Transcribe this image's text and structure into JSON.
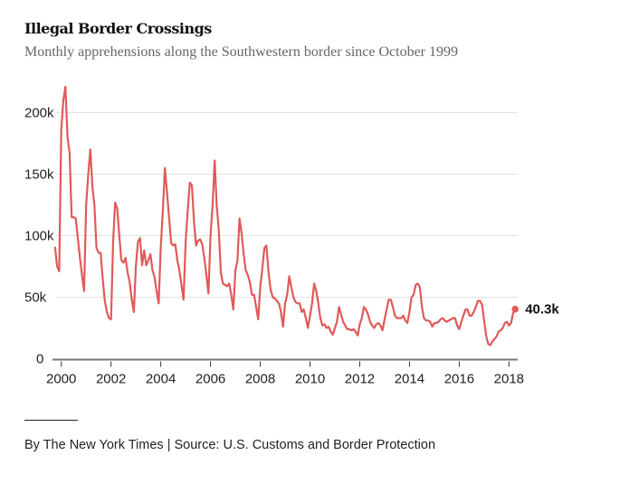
{
  "header": {
    "title": "Illegal Border Crossings",
    "subtitle": "Monthly apprehensions along the Southwestern border since October 1999"
  },
  "footer": {
    "credit": "By The New York Times | Source: U.S. Customs and Border Protection"
  },
  "chart_data": {
    "type": "line",
    "title": "Illegal Border Crossings",
    "subtitle": "Monthly apprehensions along the Southwestern border since October 1999",
    "xlabel": "",
    "ylabel": "",
    "ylim": [
      0,
      220000
    ],
    "y_ticks": [
      {
        "value": 0,
        "label": "0"
      },
      {
        "value": 50000,
        "label": "50k"
      },
      {
        "value": 100000,
        "label": "100k"
      },
      {
        "value": 150000,
        "label": "150k"
      },
      {
        "value": 200000,
        "label": "200k"
      }
    ],
    "x_ticks": [
      "2000",
      "2002",
      "2004",
      "2006",
      "2008",
      "2010",
      "2012",
      "2014",
      "2016",
      "2018"
    ],
    "grid": true,
    "line_color": "#e05a5a",
    "end_label": "40.3k",
    "x": [
      "1999-10",
      "1999-11",
      "1999-12",
      "2000-01",
      "2000-02",
      "2000-03",
      "2000-04",
      "2000-05",
      "2000-06",
      "2000-07",
      "2000-08",
      "2000-09",
      "2000-10",
      "2000-11",
      "2000-12",
      "2001-01",
      "2001-02",
      "2001-03",
      "2001-04",
      "2001-05",
      "2001-06",
      "2001-07",
      "2001-08",
      "2001-09",
      "2001-10",
      "2001-11",
      "2001-12",
      "2002-01",
      "2002-02",
      "2002-03",
      "2002-04",
      "2002-05",
      "2002-06",
      "2002-07",
      "2002-08",
      "2002-09",
      "2002-10",
      "2002-11",
      "2002-12",
      "2003-01",
      "2003-02",
      "2003-03",
      "2003-04",
      "2003-05",
      "2003-06",
      "2003-07",
      "2003-08",
      "2003-09",
      "2003-10",
      "2003-11",
      "2003-12",
      "2004-01",
      "2004-02",
      "2004-03",
      "2004-04",
      "2004-05",
      "2004-06",
      "2004-07",
      "2004-08",
      "2004-09",
      "2004-10",
      "2004-11",
      "2004-12",
      "2005-01",
      "2005-02",
      "2005-03",
      "2005-04",
      "2005-05",
      "2005-06",
      "2005-07",
      "2005-08",
      "2005-09",
      "2005-10",
      "2005-11",
      "2005-12",
      "2006-01",
      "2006-02",
      "2006-03",
      "2006-04",
      "2006-05",
      "2006-06",
      "2006-07",
      "2006-08",
      "2006-09",
      "2006-10",
      "2006-11",
      "2006-12",
      "2007-01",
      "2007-02",
      "2007-03",
      "2007-04",
      "2007-05",
      "2007-06",
      "2007-07",
      "2007-08",
      "2007-09",
      "2007-10",
      "2007-11",
      "2007-12",
      "2008-01",
      "2008-02",
      "2008-03",
      "2008-04",
      "2008-05",
      "2008-06",
      "2008-07",
      "2008-08",
      "2008-09",
      "2008-10",
      "2008-11",
      "2008-12",
      "2009-01",
      "2009-02",
      "2009-03",
      "2009-04",
      "2009-05",
      "2009-06",
      "2009-07",
      "2009-08",
      "2009-09",
      "2009-10",
      "2009-11",
      "2009-12",
      "2010-01",
      "2010-02",
      "2010-03",
      "2010-04",
      "2010-05",
      "2010-06",
      "2010-07",
      "2010-08",
      "2010-09",
      "2010-10",
      "2010-11",
      "2010-12",
      "2011-01",
      "2011-02",
      "2011-03",
      "2011-04",
      "2011-05",
      "2011-06",
      "2011-07",
      "2011-08",
      "2011-09",
      "2011-10",
      "2011-11",
      "2011-12",
      "2012-01",
      "2012-02",
      "2012-03",
      "2012-04",
      "2012-05",
      "2012-06",
      "2012-07",
      "2012-08",
      "2012-09",
      "2012-10",
      "2012-11",
      "2012-12",
      "2013-01",
      "2013-02",
      "2013-03",
      "2013-04",
      "2013-05",
      "2013-06",
      "2013-07",
      "2013-08",
      "2013-09",
      "2013-10",
      "2013-11",
      "2013-12",
      "2014-01",
      "2014-02",
      "2014-03",
      "2014-04",
      "2014-05",
      "2014-06",
      "2014-07",
      "2014-08",
      "2014-09",
      "2014-10",
      "2014-11",
      "2014-12",
      "2015-01",
      "2015-02",
      "2015-03",
      "2015-04",
      "2015-05",
      "2015-06",
      "2015-07",
      "2015-08",
      "2015-09",
      "2015-10",
      "2015-11",
      "2015-12",
      "2016-01",
      "2016-02",
      "2016-03",
      "2016-04",
      "2016-05",
      "2016-06",
      "2016-07",
      "2016-08",
      "2016-09",
      "2016-10",
      "2016-11",
      "2016-12",
      "2017-01",
      "2017-02",
      "2017-03",
      "2017-04",
      "2017-05",
      "2017-06",
      "2017-07",
      "2017-08",
      "2017-09",
      "2017-10",
      "2017-11",
      "2017-12",
      "2018-01",
      "2018-02",
      "2018-03",
      "2018-04"
    ],
    "series": [
      {
        "values": [
          91000,
          75000,
          71000,
          186000,
          210000,
          221000,
          180000,
          167000,
          115000,
          115000,
          114000,
          98000,
          82000,
          68000,
          55000,
          125000,
          150000,
          170000,
          140000,
          125000,
          90000,
          86000,
          86000,
          65000,
          47000,
          38000,
          33000,
          32000,
          95000,
          127000,
          122000,
          100000,
          80000,
          78000,
          82000,
          70000,
          62000,
          48000,
          38000,
          75000,
          95000,
          98000,
          76000,
          88000,
          76000,
          80000,
          85000,
          72000,
          66000,
          55000,
          45000,
          90000,
          120000,
          155000,
          135000,
          115000,
          94000,
          92000,
          93000,
          80000,
          72000,
          60000,
          48000,
          95000,
          120000,
          143000,
          141000,
          112000,
          92000,
          96000,
          97000,
          93000,
          82000,
          68000,
          53000,
          100000,
          125000,
          161000,
          125000,
          105000,
          70000,
          61000,
          60000,
          59000,
          61000,
          52000,
          40000,
          72000,
          80000,
          114000,
          102000,
          85000,
          72000,
          68000,
          62000,
          52000,
          52000,
          42000,
          32000,
          58000,
          73000,
          90000,
          92000,
          70000,
          56000,
          50000,
          49000,
          47000,
          45000,
          38000,
          26000,
          45000,
          52000,
          67000,
          58000,
          50000,
          46000,
          45000,
          45000,
          38000,
          40000,
          33000,
          25000,
          35000,
          45000,
          61000,
          55000,
          45000,
          33000,
          27000,
          28000,
          25000,
          26000,
          22000,
          19500,
          25000,
          30000,
          42000,
          36000,
          30000,
          27000,
          24000,
          24000,
          23000,
          24000,
          22000,
          19000,
          28000,
          33000,
          42000,
          40000,
          36000,
          30000,
          27000,
          25000,
          28000,
          29000,
          27000,
          23000,
          32000,
          40000,
          48000,
          48000,
          42000,
          35000,
          33000,
          33000,
          33000,
          35000,
          31000,
          29000,
          38000,
          50000,
          52000,
          60000,
          61000,
          58000,
          42000,
          33000,
          31000,
          31000,
          30000,
          26000,
          29000,
          29000,
          30000,
          32000,
          33000,
          31000,
          30000,
          31000,
          32000,
          33000,
          33000,
          27000,
          24000,
          30000,
          35000,
          40000,
          40000,
          35000,
          35000,
          38000,
          42000,
          47000,
          47000,
          44000,
          31000,
          19000,
          12000,
          11000,
          14000,
          16000,
          18000,
          22000,
          23000,
          25000,
          29000,
          30000,
          27000,
          29000,
          37000,
          40300
        ]
      }
    ]
  }
}
